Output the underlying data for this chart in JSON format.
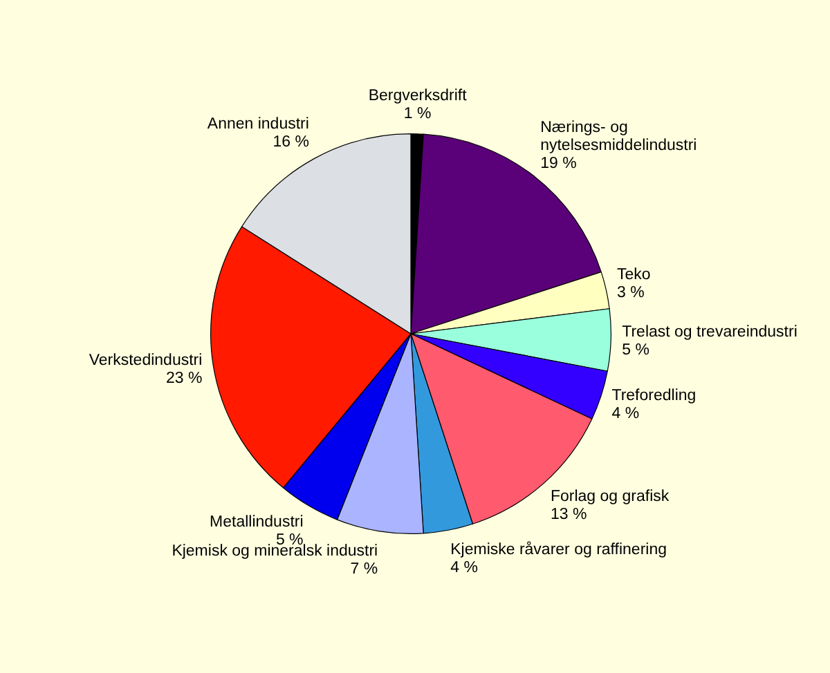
{
  "chart_data": {
    "type": "pie",
    "categories": [
      "Bergverksdrift",
      "Nærings- og nytelsesmiddelindustri",
      "Teko",
      "Trelast og trevareindustri",
      "Treforedling",
      "Forlag og grafisk",
      "Kjemiske råvarer og raffinering",
      "Kjemisk og mineralsk industri",
      "Metallindustri",
      "Verkstedindustri",
      "Annen industri"
    ],
    "values": [
      1,
      19,
      3,
      5,
      4,
      13,
      4,
      7,
      5,
      23,
      16
    ],
    "value_labels": [
      "1 %",
      "19 %",
      "3 %",
      "5 %",
      "4 %",
      "13 %",
      "4 %",
      "7 %",
      "5 %",
      "23 %",
      "16 %"
    ],
    "colors": [
      "#000000",
      "#5a0078",
      "#ffffc0",
      "#99ffdd",
      "#3300ff",
      "#ff5a6e",
      "#3399dd",
      "#aab4ff",
      "#0000ee",
      "#ff1a00",
      "#dcdfe3"
    ],
    "legend": false
  }
}
